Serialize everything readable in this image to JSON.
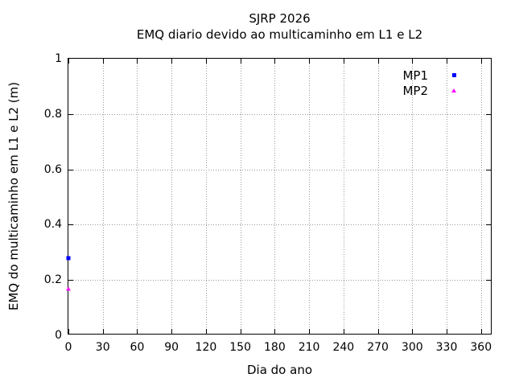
{
  "chart_data": {
    "type": "scatter",
    "title": "SJRP 2026",
    "subtitle": "EMQ diario devido ao multicaminho em L1 e L2",
    "xlabel": "Dia do ano",
    "ylabel": "EMQ do multicaminho em L1 e L2 (m)",
    "xlim": [
      0,
      370
    ],
    "ylim": [
      0,
      1
    ],
    "xticks": [
      0,
      30,
      60,
      90,
      120,
      150,
      180,
      210,
      240,
      270,
      300,
      330,
      360
    ],
    "xtick_labels": [
      "0",
      "30",
      "60",
      "90",
      "120",
      "150",
      "180",
      "210",
      "240",
      "270",
      "300",
      "330",
      "360"
    ],
    "yticks": [
      0,
      0.2,
      0.4,
      0.6,
      0.8,
      1
    ],
    "ytick_labels": [
      "0",
      "0.2",
      "0.4",
      "0.6",
      "0.8",
      "1"
    ],
    "grid": true,
    "legend_position": "top-right-inside",
    "series": [
      {
        "name": "MP1",
        "color": "#0000ff",
        "marker": "square",
        "points": [
          [
            0,
            0.28
          ]
        ]
      },
      {
        "name": "MP2",
        "color": "#ff00ff",
        "marker": "triangle",
        "points": [
          [
            0,
            0.17
          ]
        ]
      }
    ]
  },
  "colors": {
    "background": "#ffffff",
    "axis": "#000000",
    "grid": "#999999",
    "text": "#000000"
  }
}
